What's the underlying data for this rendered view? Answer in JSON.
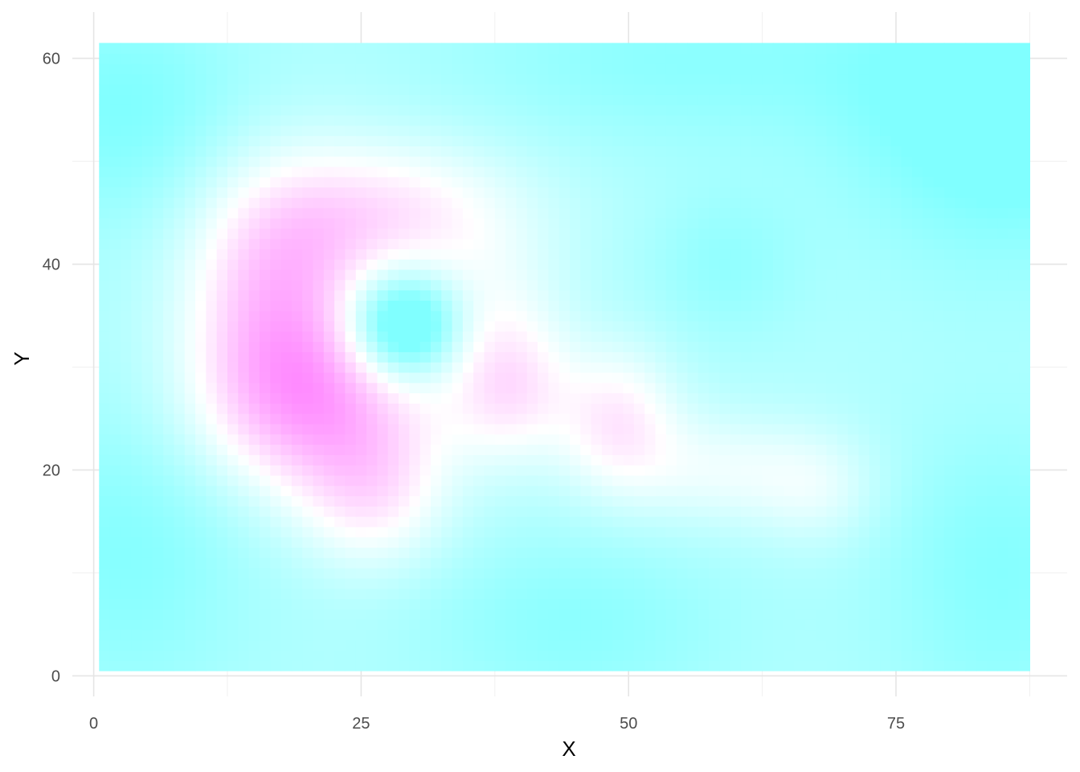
{
  "chart_data": {
    "type": "heatmap",
    "title": "",
    "xlabel": "X",
    "ylabel": "Y",
    "xlim": [
      -2,
      91
    ],
    "ylim": [
      -2,
      64.5
    ],
    "x_ticks": [
      0,
      25,
      50,
      75
    ],
    "y_ticks": [
      0,
      20,
      40,
      60
    ],
    "x_minor": [
      12.5,
      37.5,
      62.5,
      87.5
    ],
    "y_minor": [
      10,
      30,
      50
    ],
    "grid": true,
    "legend": "none",
    "field_extent": {
      "x": [
        0.5,
        87.5
      ],
      "y": [
        0.5,
        61.5
      ]
    },
    "grid_resolution": {
      "nx": 87,
      "ny": 61
    },
    "color_scale": {
      "low": "#80ffff",
      "mid": "#ffffff",
      "high": "#ff80ff",
      "limits": [
        -1,
        1
      ]
    },
    "kernels": [
      {
        "x": 17,
        "y": 36,
        "sx": 6,
        "sy": 9,
        "amp": 1.05
      },
      {
        "x": 22,
        "y": 26,
        "sx": 8,
        "sy": 6,
        "amp": 0.95
      },
      {
        "x": 28,
        "y": 45,
        "sx": 9,
        "sy": 5,
        "amp": 0.75
      },
      {
        "x": 26,
        "y": 17,
        "sx": 5,
        "sy": 5,
        "amp": 0.6
      },
      {
        "x": 29,
        "y": 34,
        "sx": 3.5,
        "sy": 3.5,
        "amp": -1.25
      },
      {
        "x": 39,
        "y": 28,
        "sx": 4,
        "sy": 5,
        "amp": 0.7
      },
      {
        "x": 49,
        "y": 25,
        "sx": 4,
        "sy": 5,
        "amp": 0.7
      },
      {
        "x": 59,
        "y": 20,
        "sx": 7,
        "sy": 4,
        "amp": 0.45
      },
      {
        "x": 68,
        "y": 18,
        "sx": 4,
        "sy": 4,
        "amp": 0.3
      },
      {
        "x": 37,
        "y": 36,
        "sx": 5,
        "sy": 5,
        "amp": 0.3
      },
      {
        "x": 59,
        "y": 40,
        "sx": 5,
        "sy": 5,
        "amp": -0.25
      },
      {
        "x": 85,
        "y": 55,
        "sx": 10,
        "sy": 10,
        "amp": -0.6
      },
      {
        "x": 3,
        "y": 55,
        "sx": 8,
        "sy": 8,
        "amp": -0.4
      },
      {
        "x": 3,
        "y": 12,
        "sx": 8,
        "sy": 10,
        "amp": -0.35
      },
      {
        "x": 85,
        "y": 10,
        "sx": 8,
        "sy": 10,
        "amp": -0.35
      },
      {
        "x": 45,
        "y": 5,
        "sx": 10,
        "sy": 6,
        "amp": -0.3
      },
      {
        "x": 55,
        "y": 60,
        "sx": 15,
        "sy": 6,
        "amp": -0.3
      }
    ],
    "baseline": -0.6
  }
}
